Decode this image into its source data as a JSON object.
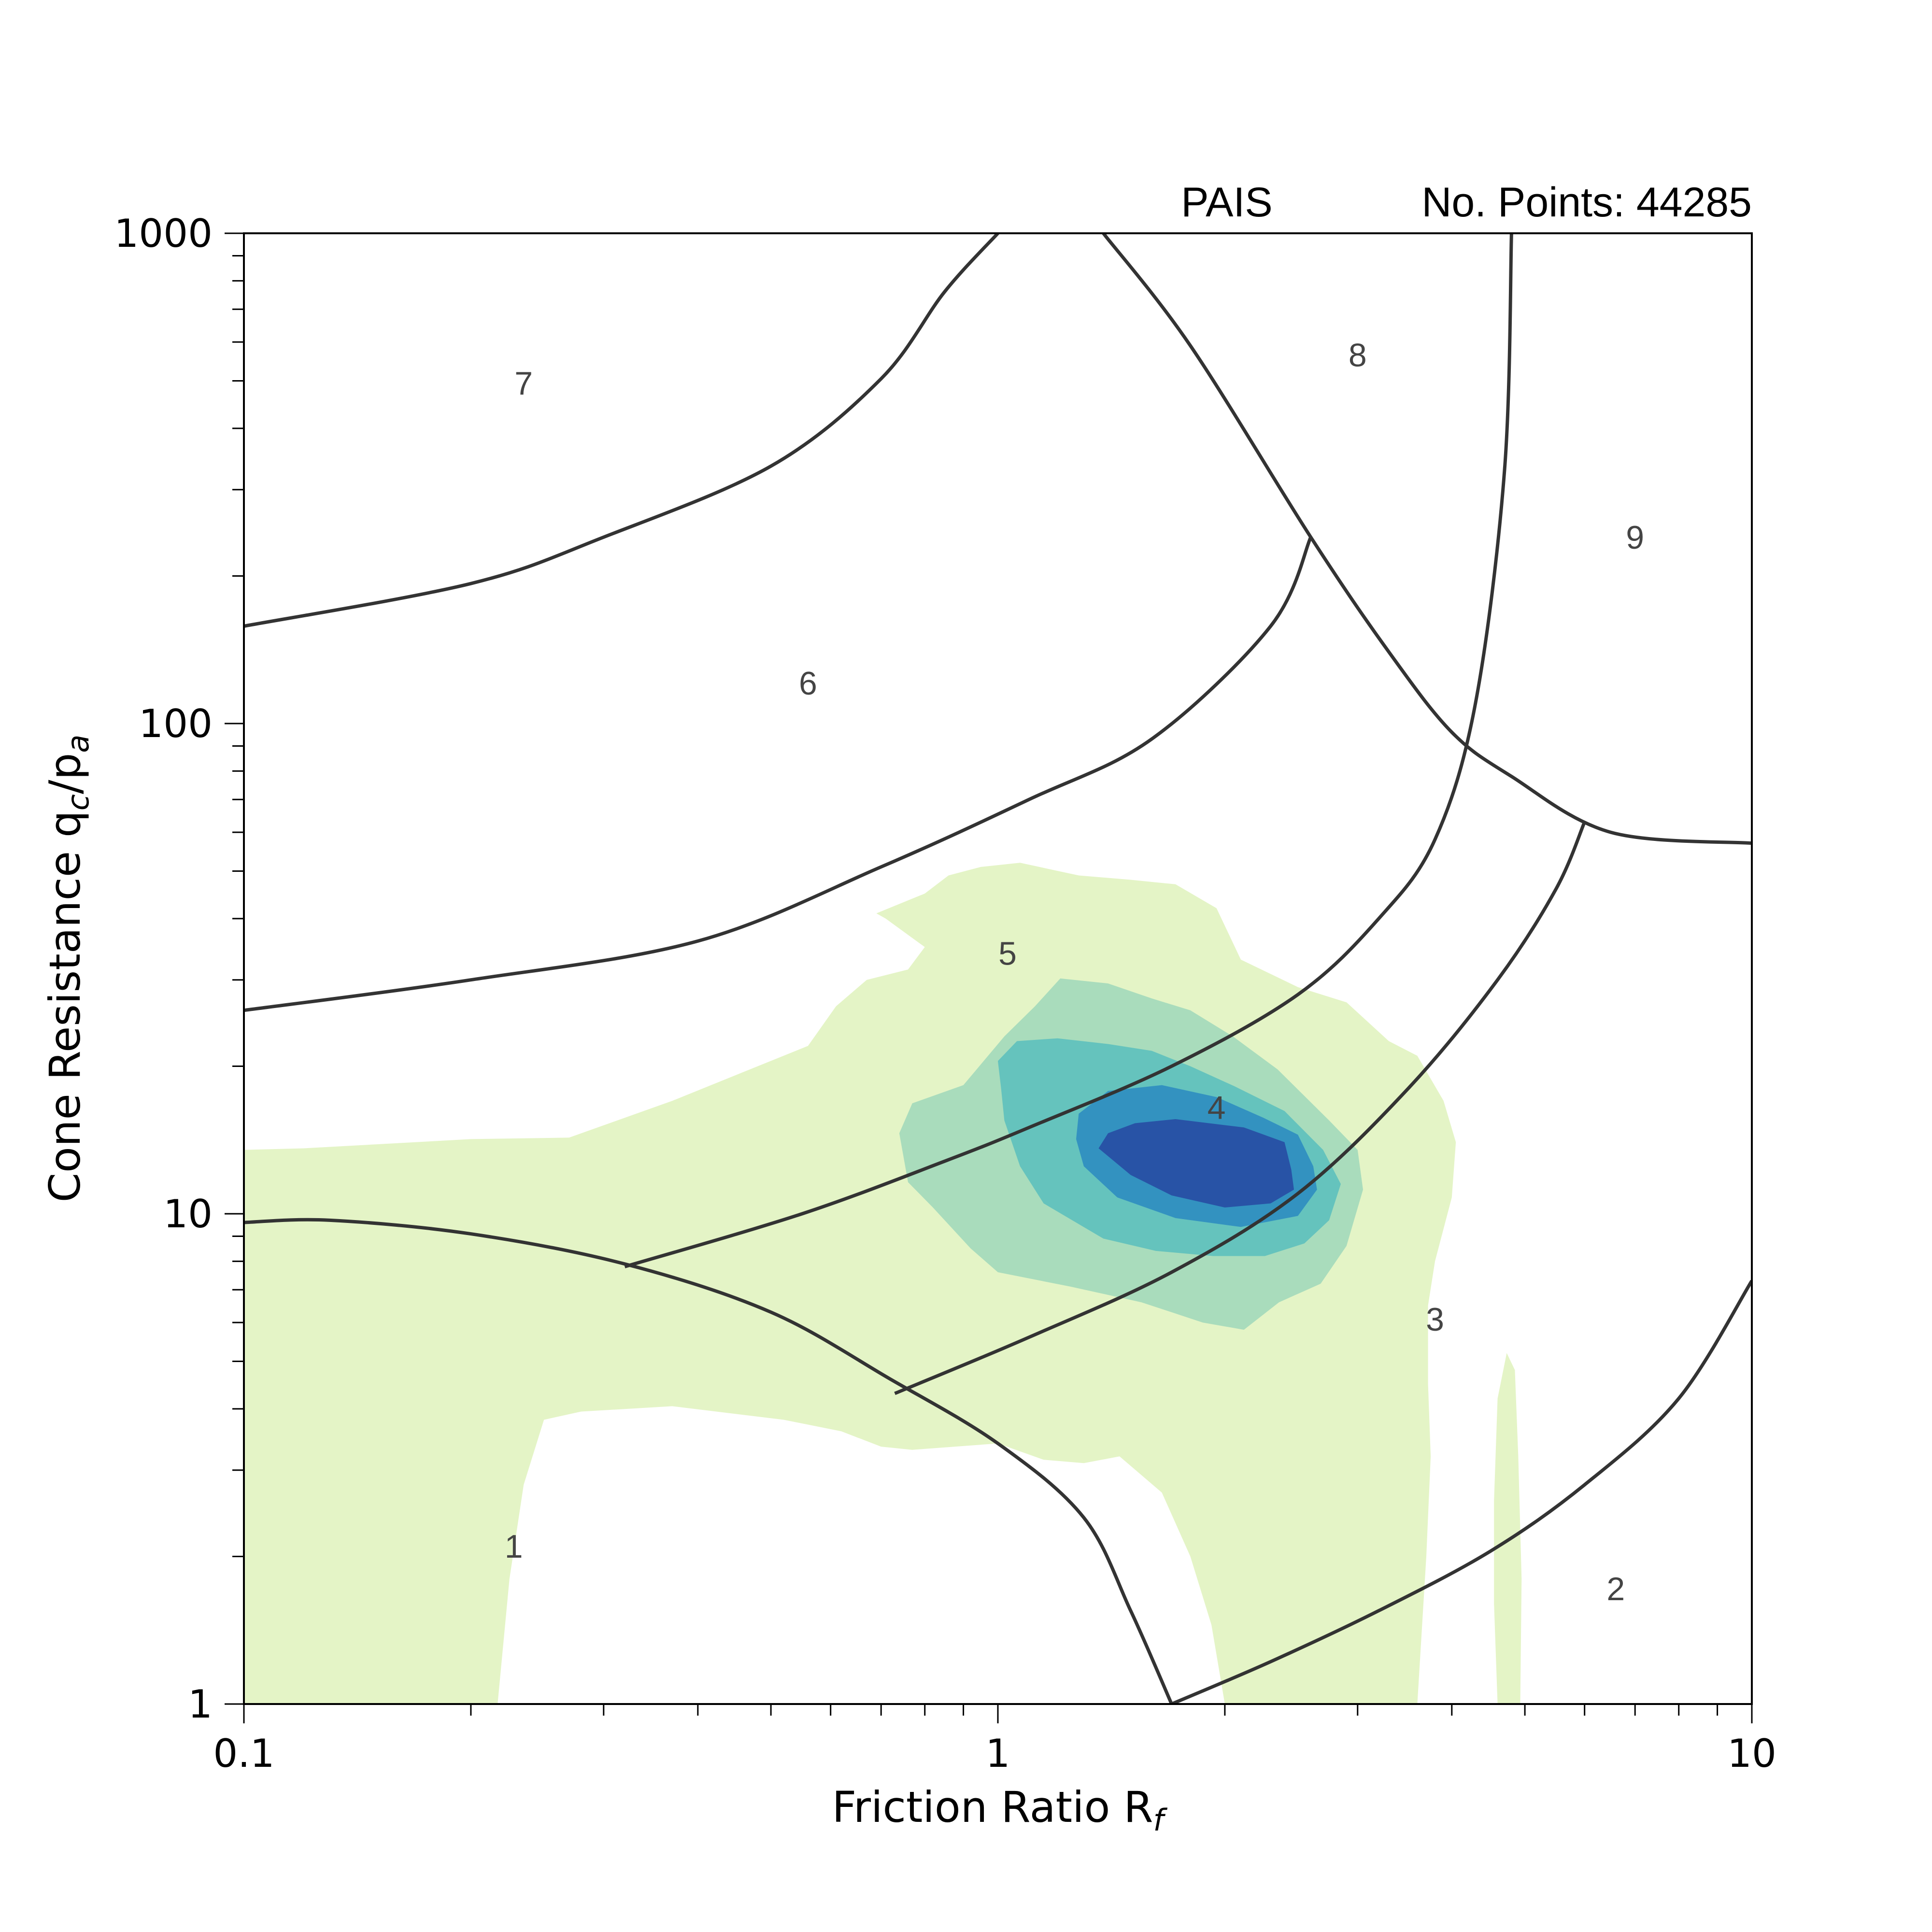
{
  "header": {
    "dataset": "PAIS",
    "points_text": "No. Points: 44285"
  },
  "chart_data": {
    "type": "contour",
    "xlabel": "Friction Ratio R",
    "xlabel_sub": "f",
    "ylabel": "Cone Resistance q",
    "ylabel_sub_c": "c",
    "ylabel_mid": "/p",
    "ylabel_sub_a": "a",
    "x_scale": "log",
    "y_scale": "log",
    "xlim": [
      0.1,
      10
    ],
    "ylim": [
      1,
      1000
    ],
    "x_ticks": [
      {
        "value": 0.1,
        "label": "0.1"
      },
      {
        "value": 1,
        "label": "1"
      },
      {
        "value": 10,
        "label": "10"
      }
    ],
    "y_ticks": [
      {
        "value": 1,
        "label": "1"
      },
      {
        "value": 10,
        "label": "10"
      },
      {
        "value": 100,
        "label": "100"
      },
      {
        "value": 1000,
        "label": "1000"
      }
    ],
    "grid": false,
    "zone_labels": [
      {
        "text": "1",
        "x": 0.228,
        "y": 2.1
      },
      {
        "text": "2",
        "x": 6.6,
        "y": 1.72
      },
      {
        "text": "3",
        "x": 3.8,
        "y": 6.1
      },
      {
        "text": "4",
        "x": 1.95,
        "y": 16.5
      },
      {
        "text": "5",
        "x": 1.03,
        "y": 34
      },
      {
        "text": "6",
        "x": 0.56,
        "y": 121
      },
      {
        "text": "7",
        "x": 0.235,
        "y": 495
      },
      {
        "text": "8",
        "x": 3.0,
        "y": 565
      },
      {
        "text": "9",
        "x": 7.0,
        "y": 240
      }
    ],
    "boundaries": [
      {
        "name": "1",
        "points": [
          [
            0.1,
            9.6
          ],
          [
            0.13,
            9.7
          ],
          [
            0.2,
            9.1
          ],
          [
            0.32,
            7.9
          ],
          [
            0.5,
            6.3
          ],
          [
            0.72,
            4.6
          ],
          [
            1.0,
            3.4
          ],
          [
            1.3,
            2.4
          ],
          [
            1.5,
            1.55
          ],
          [
            1.7,
            1.0
          ]
        ]
      },
      {
        "name": "2",
        "points": [
          [
            1.7,
            1.0
          ],
          [
            2.3,
            1.22
          ],
          [
            3.2,
            1.55
          ],
          [
            4.5,
            2.05
          ],
          [
            6.0,
            2.8
          ],
          [
            8.0,
            4.2
          ],
          [
            10,
            7.3
          ]
        ]
      },
      {
        "name": "3",
        "points": [
          [
            0.32,
            7.8
          ],
          [
            0.55,
            10
          ],
          [
            0.85,
            12.8
          ],
          [
            1.1,
            15
          ],
          [
            1.7,
            20
          ],
          [
            2.5,
            28
          ],
          [
            3.2,
            40
          ],
          [
            3.8,
            58
          ],
          [
            4.3,
            110
          ],
          [
            4.7,
            330
          ],
          [
            4.8,
            1000
          ]
        ]
      },
      {
        "name": "4",
        "points": [
          [
            0.73,
            4.3
          ],
          [
            1.1,
            5.6
          ],
          [
            1.7,
            7.6
          ],
          [
            2.5,
            11
          ],
          [
            3.5,
            18
          ],
          [
            4.6,
            30
          ],
          [
            5.5,
            46
          ],
          [
            6.0,
            63
          ]
        ]
      },
      {
        "name": "5",
        "points": [
          [
            0.1,
            26
          ],
          [
            0.2,
            30
          ],
          [
            0.4,
            36
          ],
          [
            0.7,
            51
          ],
          [
            1.1,
            70
          ],
          [
            1.6,
            93
          ],
          [
            2.3,
            158
          ],
          [
            2.6,
            240
          ]
        ]
      },
      {
        "name": "6",
        "points": [
          [
            0.1,
            158
          ],
          [
            0.2,
            193
          ],
          [
            0.3,
            240
          ],
          [
            0.5,
            335
          ],
          [
            0.7,
            505
          ],
          [
            0.85,
            760
          ],
          [
            1.0,
            1000
          ]
        ]
      },
      {
        "name": "7",
        "points": [
          [
            1.38,
            1000
          ],
          [
            1.8,
            590
          ],
          [
            2.6,
            240
          ],
          [
            3.3,
            140
          ],
          [
            4.0,
            96
          ],
          [
            4.8,
            78
          ],
          [
            6.5,
            60
          ],
          [
            10,
            57
          ]
        ]
      }
    ],
    "series": [
      {
        "level": 1,
        "color": "#e4f4c6",
        "polygons": [
          [
            [
              0.1,
              13.5
            ],
            [
              0.12,
              13.6
            ],
            [
              0.2,
              14.2
            ],
            [
              0.27,
              14.3
            ],
            [
              0.37,
              17
            ],
            [
              0.56,
              22
            ],
            [
              0.61,
              26.5
            ],
            [
              0.67,
              30
            ],
            [
              0.76,
              31.5
            ],
            [
              0.8,
              35
            ],
            [
              0.71,
              40
            ],
            [
              0.69,
              41
            ],
            [
              0.8,
              45
            ],
            [
              0.86,
              49
            ],
            [
              0.95,
              51
            ],
            [
              1.07,
              52
            ],
            [
              1.28,
              49
            ],
            [
              1.5,
              48
            ],
            [
              1.72,
              47
            ],
            [
              1.95,
              42
            ],
            [
              2.1,
              33
            ],
            [
              2.5,
              29
            ],
            [
              2.9,
              27
            ],
            [
              3.3,
              22.5
            ],
            [
              3.6,
              21
            ],
            [
              3.9,
              17
            ],
            [
              4.05,
              14
            ],
            [
              4.0,
              10.8
            ],
            [
              3.8,
              8
            ],
            [
              3.72,
              6.5
            ],
            [
              3.72,
              4.5
            ],
            [
              3.75,
              3.2
            ],
            [
              3.7,
              2.0
            ],
            [
              3.6,
              1.0
            ],
            [
              2.0,
              1.0
            ],
            [
              1.92,
              1.45
            ],
            [
              1.8,
              2.0
            ],
            [
              1.65,
              2.7
            ],
            [
              1.45,
              3.2
            ],
            [
              1.3,
              3.1
            ],
            [
              1.15,
              3.15
            ],
            [
              1.0,
              3.4
            ],
            [
              0.77,
              3.3
            ],
            [
              0.7,
              3.35
            ],
            [
              0.62,
              3.6
            ],
            [
              0.52,
              3.8
            ],
            [
              0.37,
              4.05
            ],
            [
              0.28,
              3.95
            ],
            [
              0.25,
              3.8
            ],
            [
              0.235,
              2.8
            ],
            [
              0.225,
              1.8
            ],
            [
              0.217,
              1.0
            ],
            [
              0.1,
              1.0
            ]
          ]
        ]
      },
      {
        "level": 1,
        "color": "#e4f4c6",
        "polygons": [
          [
            [
              4.6,
              1.0
            ],
            [
              4.55,
              1.6
            ],
            [
              4.55,
              2.6
            ],
            [
              4.6,
              4.2
            ],
            [
              4.73,
              5.2
            ],
            [
              4.85,
              4.8
            ],
            [
              4.9,
              3.2
            ],
            [
              4.95,
              1.8
            ],
            [
              4.93,
              1.0
            ]
          ]
        ]
      },
      {
        "level": 2,
        "color": "#a9dcbc",
        "polygons": [
          [
            [
              0.9,
              18.3
            ],
            [
              1.02,
              23
            ],
            [
              1.12,
              26.5
            ],
            [
              1.21,
              30.2
            ],
            [
              1.4,
              29.5
            ],
            [
              1.6,
              27.5
            ],
            [
              1.8,
              26
            ],
            [
              2.05,
              23
            ],
            [
              2.35,
              19.7
            ],
            [
              2.75,
              15.5
            ],
            [
              3.0,
              13.5
            ],
            [
              3.05,
              11.2
            ],
            [
              2.9,
              8.6
            ],
            [
              2.68,
              7.2
            ],
            [
              2.36,
              6.6
            ],
            [
              2.12,
              5.8
            ],
            [
              1.87,
              6.0
            ],
            [
              1.55,
              6.6
            ],
            [
              1.25,
              7.1
            ],
            [
              1.0,
              7.6
            ],
            [
              0.92,
              8.5
            ],
            [
              0.82,
              10.3
            ],
            [
              0.76,
              11.6
            ],
            [
              0.74,
              14.6
            ],
            [
              0.77,
              16.8
            ]
          ]
        ]
      },
      {
        "level": 3,
        "color": "#65c3bd",
        "polygons": [
          [
            [
              1.0,
              20.5
            ],
            [
              1.06,
              22.5
            ],
            [
              1.2,
              22.8
            ],
            [
              1.4,
              22.2
            ],
            [
              1.6,
              21.5
            ],
            [
              1.8,
              20
            ],
            [
              2.06,
              18.2
            ],
            [
              2.4,
              16.2
            ],
            [
              2.7,
              13.5
            ],
            [
              2.85,
              11.5
            ],
            [
              2.75,
              9.7
            ],
            [
              2.55,
              8.7
            ],
            [
              2.26,
              8.2
            ],
            [
              1.93,
              8.2
            ],
            [
              1.62,
              8.4
            ],
            [
              1.38,
              8.9
            ],
            [
              1.15,
              10.5
            ],
            [
              1.07,
              12.5
            ],
            [
              1.02,
              15.5
            ],
            [
              1.01,
              18
            ]
          ]
        ]
      },
      {
        "level": 4,
        "color": "#3392c0",
        "polygons": [
          [
            [
              1.28,
              16
            ],
            [
              1.4,
              17.8
            ],
            [
              1.65,
              18.3
            ],
            [
              1.95,
              17.3
            ],
            [
              2.25,
              15.7
            ],
            [
              2.5,
              14.5
            ],
            [
              2.62,
              12.5
            ],
            [
              2.65,
              11.2
            ],
            [
              2.5,
              9.9
            ],
            [
              2.1,
              9.4
            ],
            [
              1.72,
              9.8
            ],
            [
              1.44,
              10.8
            ],
            [
              1.3,
              12.5
            ],
            [
              1.27,
              14.2
            ]
          ]
        ]
      },
      {
        "level": 5,
        "color": "#2853a6",
        "polygons": [
          [
            [
              1.4,
              14.6
            ],
            [
              1.52,
              15.3
            ],
            [
              1.72,
              15.6
            ],
            [
              2.12,
              15
            ],
            [
              2.4,
              14
            ],
            [
              2.45,
              12.3
            ],
            [
              2.47,
              11.2
            ],
            [
              2.3,
              10.5
            ],
            [
              2.0,
              10.3
            ],
            [
              1.7,
              10.9
            ],
            [
              1.5,
              12
            ],
            [
              1.36,
              13.6
            ]
          ]
        ]
      }
    ]
  }
}
